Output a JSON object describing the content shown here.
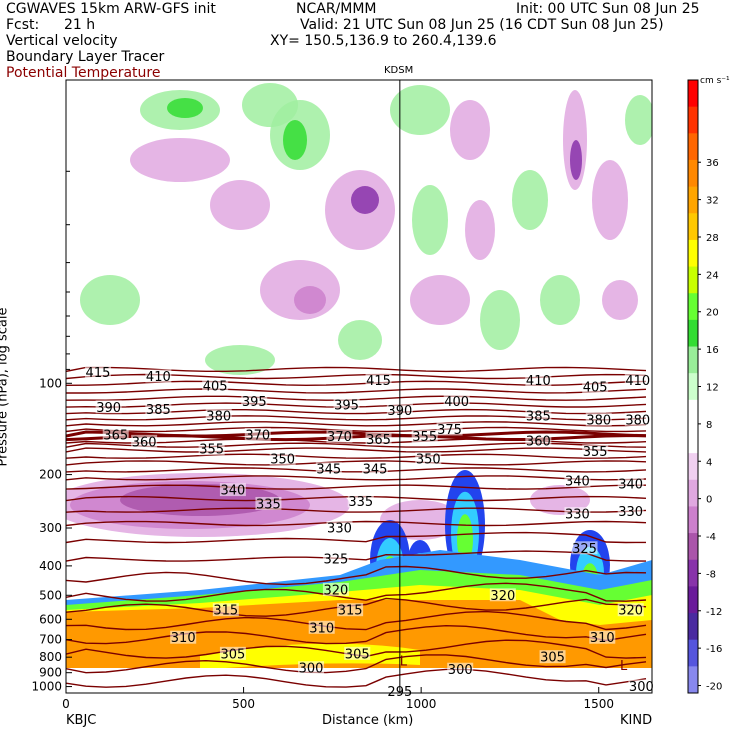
{
  "header": {
    "model": "CGWAVES 15km ARW-GFS init",
    "org": "NCAR/MMM",
    "init": "Init: 00 UTC Sun 08 Jun 25",
    "fcst_label": "Fcst:",
    "fcst_value": "21 h",
    "valid": "Valid: 21 UTC Sun 08 Jun 25 (16 CDT Sun 08 Jun 25)",
    "field1": "Vertical velocity",
    "field2": "Boundary Layer Tracer",
    "field3": "Potential Temperature",
    "xy": "XY= 150.5,136.9 to 260.4,139.6",
    "station_mid": "KDSM",
    "station_left": "KBJC",
    "station_right": "KIND"
  },
  "colorbar": {
    "unit": "cm s⁻¹",
    "ticks": [
      "36",
      "32",
      "28",
      "24",
      "20",
      "16",
      "12",
      "8",
      "4",
      "0",
      "-4",
      "-8",
      "-12",
      "-16",
      "-20"
    ],
    "colors": [
      "#ff0000",
      "#ff3300",
      "#ff6600",
      "#ff8800",
      "#ffa500",
      "#ffc800",
      "#ffff00",
      "#c8ff00",
      "#66ff33",
      "#33dd33",
      "#99ee99",
      "#ccffcc",
      "#ffffff",
      "#ffffff",
      "#f0d0f0",
      "#e0a8e0",
      "#cc80cc",
      "#aa55aa",
      "#8833aa",
      "#6a1b9a",
      "#4a2aa0",
      "#5555dd",
      "#8888ee"
    ]
  },
  "chart_data": {
    "type": "contour-cross-section",
    "xlabel": "Distance (km)",
    "ylabel": "Pressure (hPa), log scale",
    "x_ticks": [
      0,
      500,
      1000,
      1500
    ],
    "x_range": [
      0,
      1650
    ],
    "y_ticks": [
      100,
      200,
      300,
      400,
      500,
      600,
      700,
      800,
      900,
      1000
    ],
    "y_range": [
      1050,
      10
    ],
    "mid_station_x_km": 940,
    "theta_labels": [
      {
        "v": "415",
        "x_km": 90,
        "p": 92
      },
      {
        "v": "410",
        "x_km": 260,
        "p": 95
      },
      {
        "v": "405",
        "x_km": 420,
        "p": 102
      },
      {
        "v": "415",
        "x_km": 880,
        "p": 98
      },
      {
        "v": "410",
        "x_km": 1330,
        "p": 98
      },
      {
        "v": "405",
        "x_km": 1490,
        "p": 103
      },
      {
        "v": "410",
        "x_km": 1610,
        "p": 98
      },
      {
        "v": "390",
        "x_km": 120,
        "p": 120
      },
      {
        "v": "385",
        "x_km": 260,
        "p": 122
      },
      {
        "v": "395",
        "x_km": 530,
        "p": 115
      },
      {
        "v": "395",
        "x_km": 790,
        "p": 118
      },
      {
        "v": "390",
        "x_km": 940,
        "p": 123
      },
      {
        "v": "400",
        "x_km": 1100,
        "p": 115
      },
      {
        "v": "385",
        "x_km": 1330,
        "p": 128
      },
      {
        "v": "380",
        "x_km": 1500,
        "p": 132
      },
      {
        "v": "380",
        "x_km": 1610,
        "p": 132
      },
      {
        "v": "380",
        "x_km": 430,
        "p": 128
      },
      {
        "v": "375",
        "x_km": 1080,
        "p": 142
      },
      {
        "v": "365",
        "x_km": 140,
        "p": 148
      },
      {
        "v": "360",
        "x_km": 220,
        "p": 156
      },
      {
        "v": "370",
        "x_km": 540,
        "p": 148
      },
      {
        "v": "370",
        "x_km": 770,
        "p": 150
      },
      {
        "v": "365",
        "x_km": 880,
        "p": 153
      },
      {
        "v": "355",
        "x_km": 1010,
        "p": 150
      },
      {
        "v": "360",
        "x_km": 1330,
        "p": 155
      },
      {
        "v": "355",
        "x_km": 1490,
        "p": 168
      },
      {
        "v": "350",
        "x_km": 610,
        "p": 178
      },
      {
        "v": "355",
        "x_km": 410,
        "p": 165
      },
      {
        "v": "345",
        "x_km": 740,
        "p": 192
      },
      {
        "v": "345",
        "x_km": 870,
        "p": 192
      },
      {
        "v": "350",
        "x_km": 1020,
        "p": 178
      },
      {
        "v": "340",
        "x_km": 470,
        "p": 225
      },
      {
        "v": "335",
        "x_km": 570,
        "p": 250
      },
      {
        "v": "335",
        "x_km": 830,
        "p": 245
      },
      {
        "v": "340",
        "x_km": 1440,
        "p": 210
      },
      {
        "v": "340",
        "x_km": 1590,
        "p": 215
      },
      {
        "v": "330",
        "x_km": 770,
        "p": 300
      },
      {
        "v": "330",
        "x_km": 1440,
        "p": 270
      },
      {
        "v": "330",
        "x_km": 1590,
        "p": 265
      },
      {
        "v": "325",
        "x_km": 760,
        "p": 380
      },
      {
        "v": "325",
        "x_km": 1460,
        "p": 350
      },
      {
        "v": "320",
        "x_km": 760,
        "p": 480
      },
      {
        "v": "320",
        "x_km": 1230,
        "p": 500
      },
      {
        "v": "320",
        "x_km": 1590,
        "p": 560
      },
      {
        "v": "315",
        "x_km": 450,
        "p": 560
      },
      {
        "v": "315",
        "x_km": 800,
        "p": 560
      },
      {
        "v": "310",
        "x_km": 330,
        "p": 690
      },
      {
        "v": "310",
        "x_km": 720,
        "p": 640
      },
      {
        "v": "310",
        "x_km": 1510,
        "p": 690
      },
      {
        "v": "305",
        "x_km": 470,
        "p": 780
      },
      {
        "v": "305",
        "x_km": 820,
        "p": 780
      },
      {
        "v": "305",
        "x_km": 1370,
        "p": 800
      },
      {
        "v": "300",
        "x_km": 690,
        "p": 870
      },
      {
        "v": "300",
        "x_km": 1110,
        "p": 880
      },
      {
        "v": "300",
        "x_km": 1620,
        "p": 1000
      },
      {
        "v": "295",
        "x_km": 940,
        "p": 1040
      }
    ],
    "markers": [
      {
        "v": "L",
        "x_km": 950,
        "p": 820
      },
      {
        "v": "L",
        "x_km": 1570,
        "p": 850
      }
    ]
  }
}
